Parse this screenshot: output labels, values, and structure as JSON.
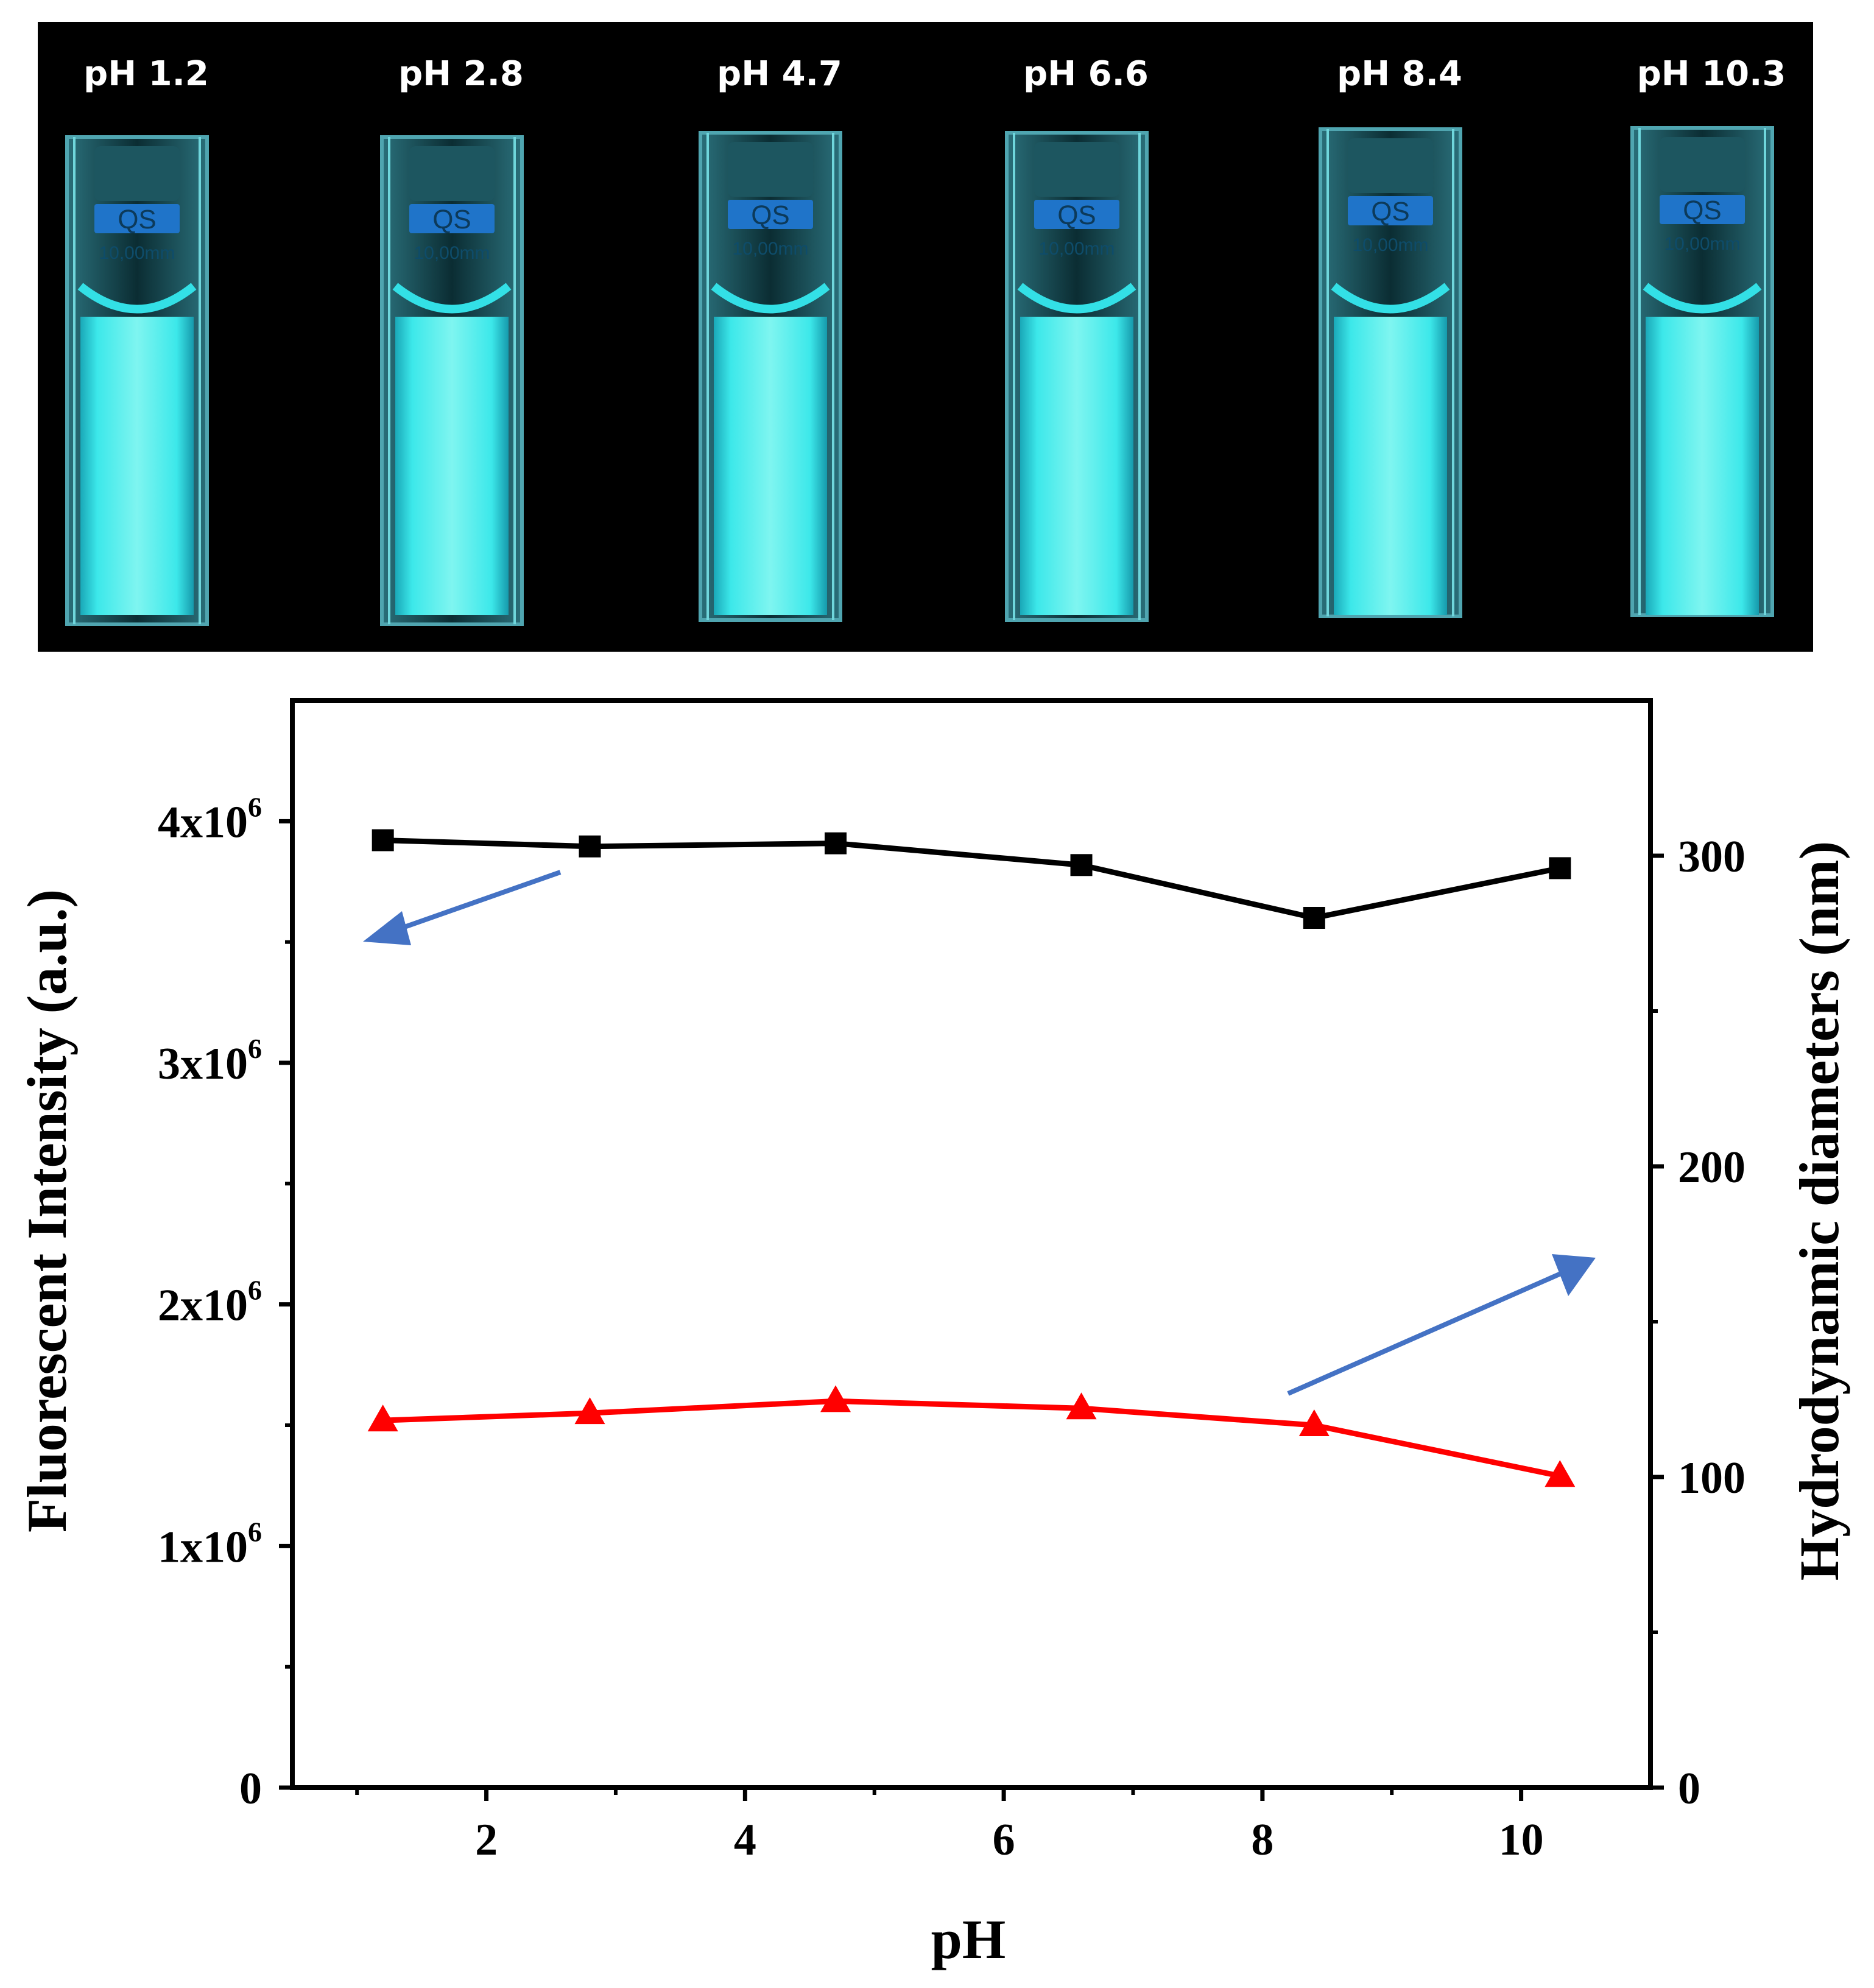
{
  "photo": {
    "labels": [
      "pH 1.2",
      "pH 2.8",
      "pH 4.7",
      "pH 6.6",
      "pH 8.4",
      "pH 10.3"
    ],
    "cuvette_brand": "QS",
    "cuvette_path": "10,00mm",
    "glow_color": "#33e0e6",
    "background": "#000000"
  },
  "chart_data": {
    "type": "line",
    "xlabel": "pH",
    "ylabel_left": "Fluorescent Intensity (a.u.)",
    "ylabel_right": "Hydrodynamic diameters (nm)",
    "xlim": [
      0.5,
      11
    ],
    "ylim_left": [
      0,
      4500000
    ],
    "ylim_right": [
      0,
      350
    ],
    "x_ticks": [
      2,
      4,
      6,
      8,
      10
    ],
    "y_left_ticks": [
      {
        "value": 0,
        "base": "0",
        "exp": ""
      },
      {
        "value": 1000000,
        "base": "1x10",
        "exp": "6"
      },
      {
        "value": 2000000,
        "base": "2x10",
        "exp": "6"
      },
      {
        "value": 3000000,
        "base": "3x10",
        "exp": "6"
      },
      {
        "value": 4000000,
        "base": "4x10",
        "exp": "6"
      }
    ],
    "y_right_ticks": [
      0,
      100,
      200,
      300
    ],
    "series": [
      {
        "name": "Hydrodynamic diameters",
        "axis": "right",
        "marker": "square",
        "color": "#000000",
        "x": [
          1.2,
          2.8,
          4.7,
          6.6,
          8.4,
          10.3
        ],
        "y": [
          305,
          303,
          304,
          297,
          280,
          296
        ]
      },
      {
        "name": "Fluorescent Intensity",
        "axis": "left",
        "marker": "triangle",
        "color": "#ff0000",
        "x": [
          1.2,
          2.8,
          4.7,
          6.6,
          8.4,
          10.3
        ],
        "y": [
          1520000,
          1550000,
          1600000,
          1570000,
          1500000,
          1290000
        ]
      }
    ],
    "arrow_color": "#4472c4",
    "grid": false
  }
}
